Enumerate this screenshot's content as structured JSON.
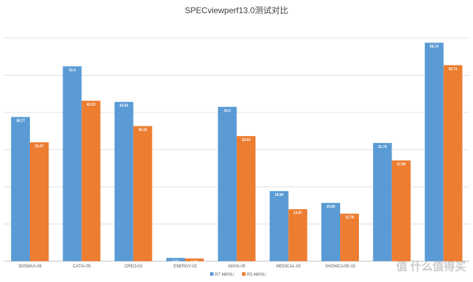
{
  "chart_data": {
    "type": "bar",
    "title": "SPECviewperf13.0测试对比",
    "categories": [
      "3DSMAX-06",
      "CATIA-05",
      "CREO-02",
      "ENERGY-02",
      "MAYA-05",
      "MEDICAL-02",
      "SHOWCASE-02",
      "",
      ""
    ],
    "series": [
      {
        "name": "R7 4800U",
        "color": "#5b9bd5",
        "values": [
          38.77,
          52.4,
          42.83,
          0.87,
          41.5,
          18.84,
          15.66,
          31.79,
          58.74
        ],
        "labels": [
          "38.77",
          "52.4",
          "42.83",
          "0.87",
          "41.5",
          "18.84",
          "15.66",
          "31.79",
          "58.74"
        ]
      },
      {
        "name": "R5 4600U",
        "color": "#ed7d31",
        "values": [
          31.97,
          43.13,
          36.33,
          0.72,
          33.63,
          13.97,
          12.78,
          27.09,
          52.71
        ],
        "labels": [
          "31.97",
          "43.13",
          "36.33",
          "0.72",
          "33.63",
          "13.97",
          "12.78",
          "27.09",
          "52.71"
        ]
      }
    ],
    "xlabel": "",
    "ylabel": "",
    "ylim": [
      0,
      65
    ],
    "grid": true,
    "legend_position": "bottom"
  },
  "watermark": "值 什么值得买"
}
